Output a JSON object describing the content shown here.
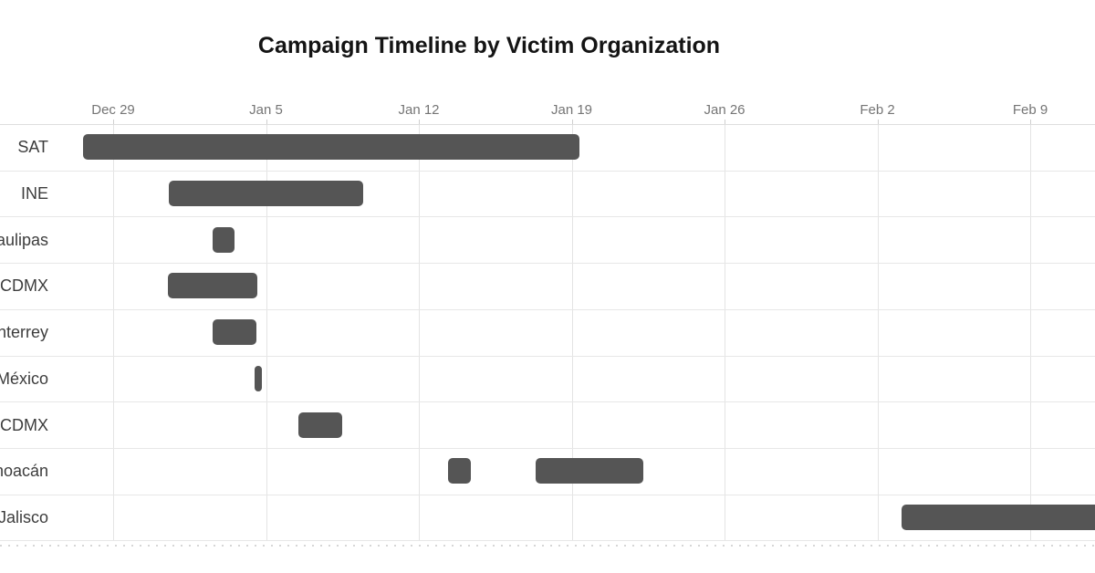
{
  "page": {
    "background": "#ffffff"
  },
  "chart_data": {
    "type": "bar",
    "subtype": "gantt",
    "title": "Campaign Timeline by Victim Organization",
    "orientation": "horizontal",
    "grid": true,
    "legend": false,
    "colors": {
      "bar": "#555555",
      "grid_vertical": "#e4e4e4",
      "grid_horizontal": "#e7e7e7",
      "tick_text": "#757575",
      "row_label_text": "#3d3d3d",
      "title_text": "#141414"
    },
    "x_axis": {
      "day0": "Dec 29",
      "tick_labels": [
        "Dec 29",
        "Jan 5",
        "Jan 12",
        "Jan 19",
        "Jan 26",
        "Feb 2",
        "Feb 9"
      ],
      "tick_day_offsets": [
        0,
        7,
        14,
        21,
        28,
        35,
        42
      ],
      "days_per_tick": 7,
      "clipped_left": true,
      "clipped_right": true
    },
    "rows": [
      {
        "label": "SAT",
        "segments": [
          {
            "start_day": -1.38,
            "end_day": 21.35,
            "approx_dates": "Dec 28 – Jan 19"
          }
        ]
      },
      {
        "label": "INE",
        "segments": [
          {
            "start_day": 2.55,
            "end_day": 11.45,
            "approx_dates": "Jan 1 – Jan 9"
          }
        ]
      },
      {
        "label": "aulipas",
        "segments": [
          {
            "start_day": 4.55,
            "end_day": 5.56,
            "approx_dates": "Jan 3"
          }
        ]
      },
      {
        "label": "CDMX",
        "segments": [
          {
            "start_day": 2.51,
            "end_day": 6.6,
            "approx_dates": "Jan 1 – Jan 4"
          }
        ]
      },
      {
        "label": "nterrey",
        "segments": [
          {
            "start_day": 4.55,
            "end_day": 6.56,
            "approx_dates": "Jan 3 – Jan 4"
          }
        ]
      },
      {
        "label": "México",
        "segments": [
          {
            "start_day": 6.48,
            "end_day": 6.81,
            "approx_dates": "Jan 4 (brief)"
          }
        ]
      },
      {
        "label": "CDMX",
        "segments": [
          {
            "start_day": 8.48,
            "end_day": 10.49,
            "approx_dates": "Jan 7 – Jan 8"
          }
        ]
      },
      {
        "label": "hoacán",
        "segments": [
          {
            "start_day": 15.34,
            "end_day": 16.38,
            "approx_dates": "Jan 14"
          },
          {
            "start_day": 19.35,
            "end_day": 24.28,
            "approx_dates": "Jan 18 – Jan 22"
          }
        ]
      },
      {
        "label": "Jalisco",
        "segments": [
          {
            "start_day": 36.1,
            "end_day": 45.6,
            "approx_dates": "Feb 4 – (cut off past Feb 9)",
            "clipped_right": true
          }
        ]
      }
    ]
  }
}
